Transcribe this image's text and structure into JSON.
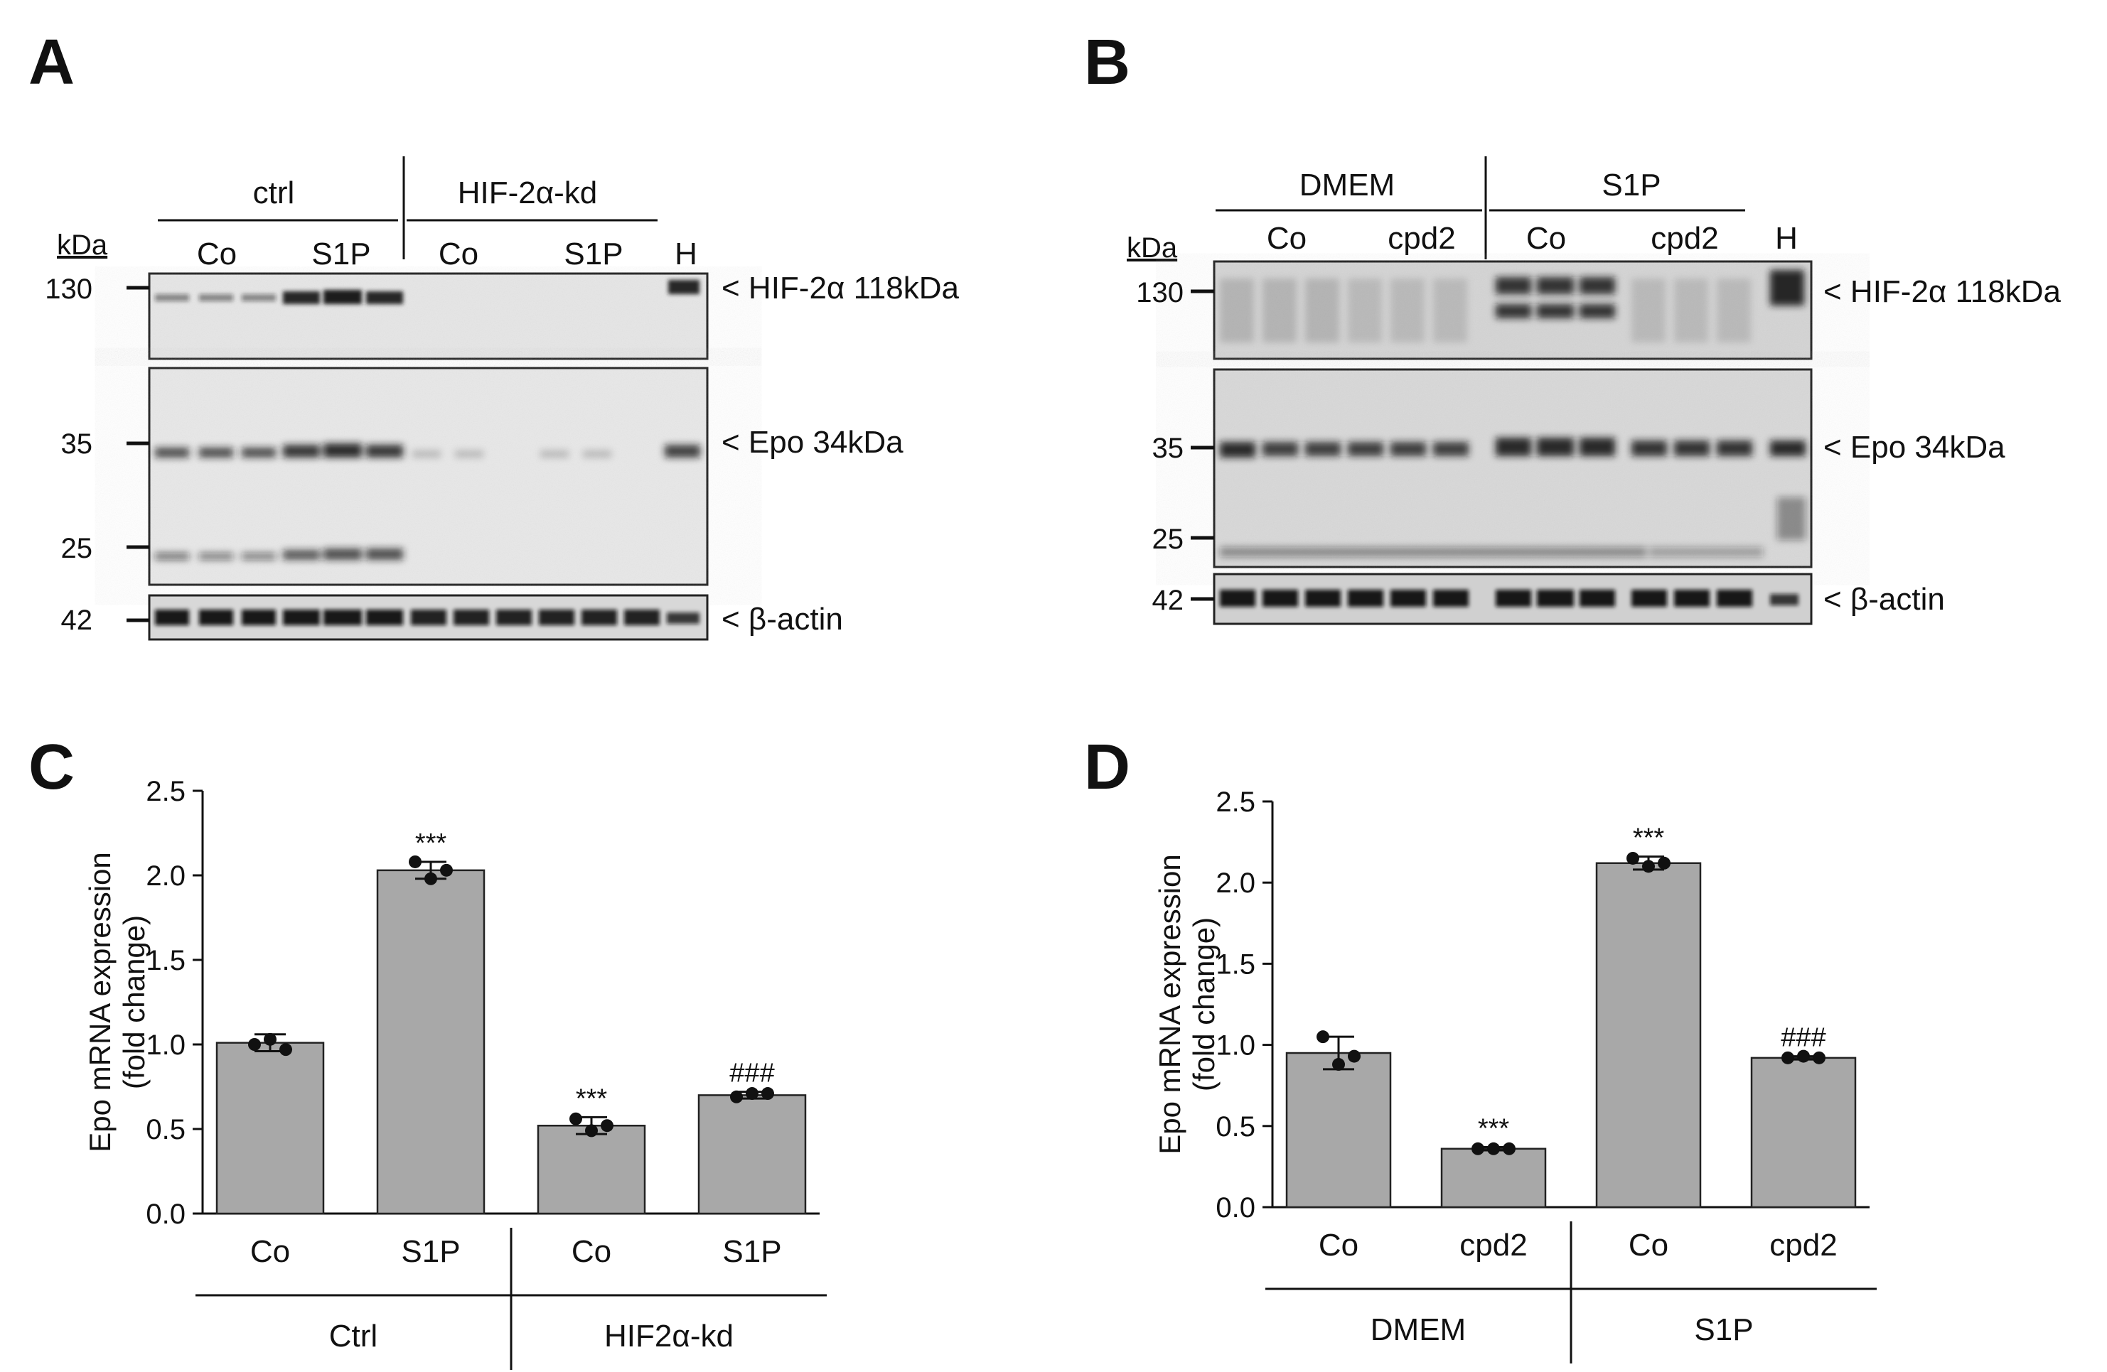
{
  "panels": {
    "A": {
      "letter": "A",
      "kda_label": "kDa",
      "group_labels": [
        "ctrl",
        "HIF-2α-kd"
      ],
      "lane_labels": [
        "Co",
        "S1P",
        "Co",
        "S1P",
        "H"
      ],
      "markers": [
        "130",
        "35",
        "25",
        "42"
      ],
      "band_labels": [
        "< HIF-2α 118kDa",
        "< Epo 34kDa",
        "< β-actin"
      ]
    },
    "B": {
      "letter": "B",
      "kda_label": "kDa",
      "group_labels": [
        "DMEM",
        "S1P"
      ],
      "lane_labels": [
        "Co",
        "cpd2",
        "Co",
        "cpd2",
        "H"
      ],
      "markers": [
        "130",
        "35",
        "25",
        "42"
      ],
      "band_labels": [
        "< HIF-2α 118kDa",
        "< Epo 34kDa",
        "< β-actin"
      ]
    },
    "C": {
      "letter": "C"
    },
    "D": {
      "letter": "D"
    }
  },
  "chart_data": [
    {
      "panel": "C",
      "type": "bar",
      "ylabel": "Epo mRNA expression",
      "ylabel2": "(fold change)",
      "ylim": [
        0,
        2.5
      ],
      "yticks": [
        "0.0",
        "0.5",
        "1.0",
        "1.5",
        "2.0",
        "2.5"
      ],
      "categories": [
        "Co",
        "S1P",
        "Co",
        "S1P"
      ],
      "groups": [
        "Ctrl",
        "HIF2α-kd"
      ],
      "values": [
        1.01,
        2.03,
        0.52,
        0.7
      ],
      "errors": [
        0.05,
        0.05,
        0.05,
        0.02
      ],
      "points": [
        [
          1.0,
          1.03,
          0.97
        ],
        [
          2.08,
          1.98,
          2.03
        ],
        [
          0.56,
          0.49,
          0.52
        ],
        [
          0.69,
          0.71,
          0.71
        ]
      ],
      "annotations": [
        "",
        "***",
        "***",
        "###"
      ],
      "bar_color": "#a8a8a8"
    },
    {
      "panel": "D",
      "type": "bar",
      "ylabel": "Epo mRNA expression",
      "ylabel2": "(fold change)",
      "ylim": [
        0,
        2.5
      ],
      "yticks": [
        "0.0",
        "0.5",
        "1.0",
        "1.5",
        "2.0",
        "2.5"
      ],
      "categories": [
        "Co",
        "cpd2",
        "Co",
        "cpd2"
      ],
      "groups": [
        "DMEM",
        "S1P"
      ],
      "values": [
        0.95,
        0.36,
        2.12,
        0.92
      ],
      "errors": [
        0.1,
        0.01,
        0.04,
        0.01
      ],
      "points": [
        [
          1.05,
          0.88,
          0.93
        ],
        [
          0.36,
          0.36,
          0.36
        ],
        [
          2.15,
          2.1,
          2.12
        ],
        [
          0.92,
          0.93,
          0.92
        ]
      ],
      "annotations": [
        "",
        "***",
        "***",
        "###"
      ],
      "bar_color": "#a8a8a8"
    }
  ]
}
